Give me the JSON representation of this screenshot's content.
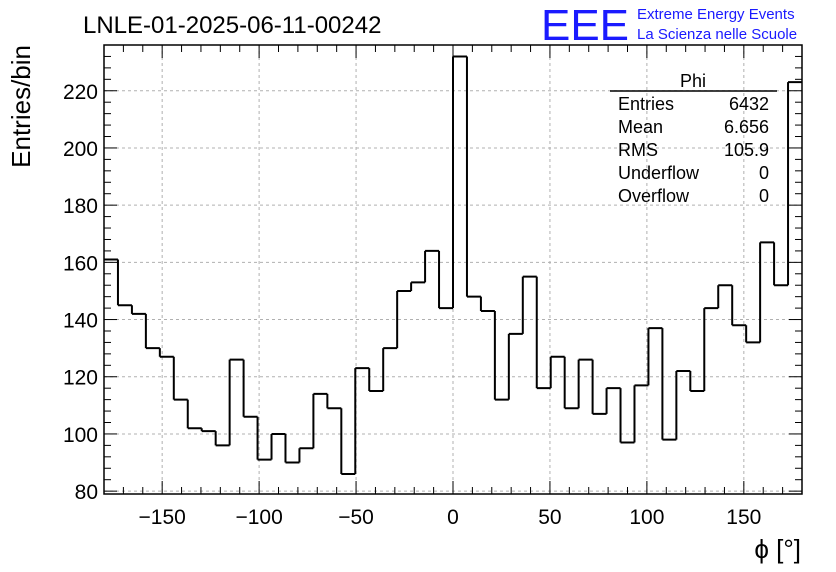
{
  "header": {
    "title": "LNLE-01-2025-06-11-00242",
    "logo_mark": "EEE",
    "logo_line1": "Extreme Energy Events",
    "logo_line2": "La Scienza nelle Scuole"
  },
  "stats": {
    "name": "Phi",
    "rows": [
      {
        "label": "Entries",
        "value": "6432"
      },
      {
        "label": "Mean",
        "value": "6.656"
      },
      {
        "label": "RMS",
        "value": "105.9"
      },
      {
        "label": "Underflow",
        "value": "0"
      },
      {
        "label": "Overflow",
        "value": "0"
      }
    ]
  },
  "chart_data": {
    "type": "histogram",
    "title": "LNLE-01-2025-06-11-00242",
    "xlabel": "ϕ [°]",
    "ylabel": "Entries/bin",
    "xlim": [
      -180,
      180
    ],
    "ylim": [
      79,
      236
    ],
    "bin_width": 7.2,
    "bin_edges_start": -180,
    "values": [
      161,
      145,
      142,
      130,
      127,
      112,
      102,
      101,
      96,
      126,
      106,
      91,
      100,
      90,
      95,
      114,
      109,
      86,
      123,
      115,
      130,
      150,
      153,
      164,
      144,
      232,
      148,
      143,
      112,
      135,
      155,
      116,
      127,
      109,
      126,
      107,
      116,
      97,
      117,
      137,
      98,
      122,
      115,
      144,
      152,
      138,
      132,
      167,
      152,
      223
    ],
    "x_ticks": [
      -150,
      -100,
      -50,
      0,
      50,
      100,
      150
    ],
    "x_tick_labels": [
      "−150",
      "−100",
      "−50",
      "0",
      "50",
      "100",
      "150"
    ],
    "y_ticks": [
      80,
      100,
      120,
      140,
      160,
      180,
      200,
      220
    ],
    "y_tick_labels": [
      "80",
      "100",
      "120",
      "140",
      "160",
      "180",
      "200",
      "220"
    ],
    "grid": true
  }
}
